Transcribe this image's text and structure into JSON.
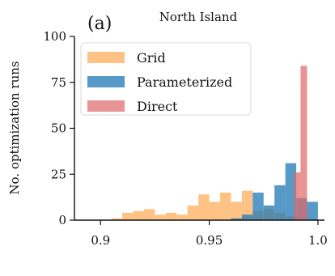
{
  "panel_label": "(a)",
  "chart_data": {
    "type": "bar",
    "title": "North Island",
    "xlabel": "",
    "ylabel": "No. optimization runs",
    "xlim": [
      0.888,
      1.003
    ],
    "ylim": [
      0,
      100
    ],
    "xticks": [
      0.9,
      0.95,
      1.0
    ],
    "xtick_labels": [
      "0.9",
      "0.95",
      "1.0"
    ],
    "yticks": [
      0,
      25,
      50,
      75,
      100
    ],
    "ytick_labels": [
      "0",
      "25",
      "50",
      "75",
      "100"
    ],
    "grid": false,
    "legend": {
      "position": "top-left",
      "entries": [
        "Grid",
        "Parameterized",
        "Direct"
      ]
    },
    "histogram": true,
    "series": [
      {
        "name": "Grid",
        "color": "#ffbb78",
        "opacity": 0.9,
        "bins": [
          {
            "x0": 0.9,
            "x1": 0.905,
            "value": 0
          },
          {
            "x0": 0.905,
            "x1": 0.91,
            "value": 1
          },
          {
            "x0": 0.91,
            "x1": 0.915,
            "value": 4
          },
          {
            "x0": 0.915,
            "x1": 0.92,
            "value": 5
          },
          {
            "x0": 0.92,
            "x1": 0.925,
            "value": 6
          },
          {
            "x0": 0.925,
            "x1": 0.93,
            "value": 3
          },
          {
            "x0": 0.93,
            "x1": 0.935,
            "value": 4
          },
          {
            "x0": 0.935,
            "x1": 0.94,
            "value": 3
          },
          {
            "x0": 0.94,
            "x1": 0.945,
            "value": 8
          },
          {
            "x0": 0.945,
            "x1": 0.95,
            "value": 14
          },
          {
            "x0": 0.95,
            "x1": 0.955,
            "value": 10
          },
          {
            "x0": 0.955,
            "x1": 0.96,
            "value": 15
          },
          {
            "x0": 0.96,
            "x1": 0.965,
            "value": 10
          },
          {
            "x0": 0.965,
            "x1": 0.97,
            "value": 16
          },
          {
            "x0": 0.97,
            "x1": 0.975,
            "value": 5
          },
          {
            "x0": 0.975,
            "x1": 0.98,
            "value": 6
          },
          {
            "x0": 0.98,
            "x1": 0.985,
            "value": 4
          },
          {
            "x0": 0.985,
            "x1": 0.99,
            "value": 2
          }
        ]
      },
      {
        "name": "Parameterized",
        "color": "#1f77b4",
        "opacity": 0.75,
        "bins": [
          {
            "x0": 0.96,
            "x1": 0.965,
            "value": 1
          },
          {
            "x0": 0.965,
            "x1": 0.97,
            "value": 3
          },
          {
            "x0": 0.97,
            "x1": 0.975,
            "value": 15
          },
          {
            "x0": 0.975,
            "x1": 0.98,
            "value": 8
          },
          {
            "x0": 0.98,
            "x1": 0.985,
            "value": 19
          },
          {
            "x0": 0.985,
            "x1": 0.99,
            "value": 31
          },
          {
            "x0": 0.99,
            "x1": 0.995,
            "value": 12
          },
          {
            "x0": 0.995,
            "x1": 1.0,
            "value": 10
          }
        ]
      },
      {
        "name": "Direct",
        "color": "#e06666",
        "opacity": 0.7,
        "bins": [
          {
            "x0": 0.989,
            "x1": 0.992,
            "value": 26
          },
          {
            "x0": 0.992,
            "x1": 0.995,
            "value": 84
          }
        ]
      }
    ]
  }
}
